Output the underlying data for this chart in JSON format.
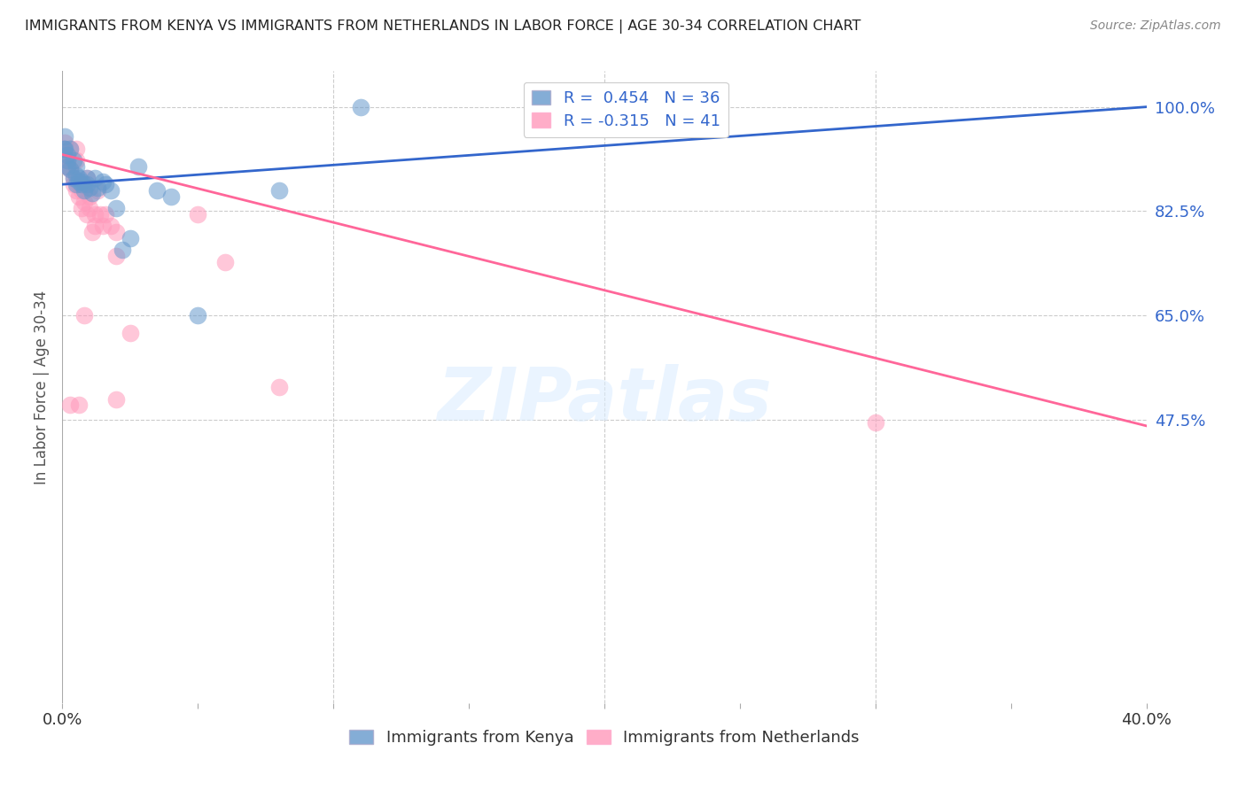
{
  "title": "IMMIGRANTS FROM KENYA VS IMMIGRANTS FROM NETHERLANDS IN LABOR FORCE | AGE 30-34 CORRELATION CHART",
  "source": "Source: ZipAtlas.com",
  "ylabel": "In Labor Force | Age 30-34",
  "ytick_labels": [
    "100.0%",
    "82.5%",
    "65.0%",
    "47.5%"
  ],
  "ytick_values": [
    1.0,
    0.825,
    0.65,
    0.475
  ],
  "xlim": [
    0.0,
    0.4
  ],
  "ylim": [
    0.0,
    1.06
  ],
  "kenya_color": "#6699CC",
  "netherlands_color": "#FF99BB",
  "kenya_line_color": "#3366CC",
  "netherlands_line_color": "#FF6699",
  "legend_line1": "R =  0.454   N = 36",
  "legend_line2": "R = -0.315   N = 41",
  "kenya_label": "Immigrants from Kenya",
  "netherlands_label": "Immigrants from Netherlands",
  "kenya_x": [
    0.0005,
    0.001,
    0.001,
    0.002,
    0.002,
    0.002,
    0.003,
    0.003,
    0.004,
    0.004,
    0.005,
    0.005,
    0.005,
    0.006,
    0.006,
    0.007,
    0.007,
    0.008,
    0.009,
    0.009,
    0.01,
    0.011,
    0.012,
    0.013,
    0.015,
    0.016,
    0.018,
    0.02,
    0.022,
    0.025,
    0.028,
    0.035,
    0.04,
    0.05,
    0.08,
    0.11
  ],
  "kenya_y": [
    0.93,
    0.95,
    0.93,
    0.92,
    0.91,
    0.9,
    0.93,
    0.895,
    0.88,
    0.91,
    0.885,
    0.87,
    0.9,
    0.88,
    0.875,
    0.87,
    0.875,
    0.86,
    0.87,
    0.88,
    0.865,
    0.855,
    0.88,
    0.865,
    0.875,
    0.87,
    0.86,
    0.83,
    0.76,
    0.78,
    0.9,
    0.86,
    0.85,
    0.65,
    0.86,
    1.0
  ],
  "netherlands_x": [
    0.0005,
    0.001,
    0.001,
    0.002,
    0.002,
    0.003,
    0.003,
    0.004,
    0.004,
    0.005,
    0.005,
    0.005,
    0.006,
    0.006,
    0.007,
    0.007,
    0.008,
    0.008,
    0.009,
    0.009,
    0.01,
    0.01,
    0.011,
    0.012,
    0.012,
    0.013,
    0.014,
    0.015,
    0.016,
    0.018,
    0.02,
    0.02,
    0.025,
    0.05,
    0.06,
    0.08,
    0.003,
    0.006,
    0.008,
    0.02,
    0.3
  ],
  "netherlands_y": [
    0.93,
    0.92,
    0.94,
    0.91,
    0.9,
    0.895,
    0.93,
    0.88,
    0.87,
    0.93,
    0.86,
    0.91,
    0.87,
    0.85,
    0.83,
    0.86,
    0.84,
    0.87,
    0.88,
    0.82,
    0.85,
    0.83,
    0.79,
    0.82,
    0.8,
    0.86,
    0.82,
    0.8,
    0.82,
    0.8,
    0.79,
    0.75,
    0.62,
    0.82,
    0.74,
    0.53,
    0.5,
    0.5,
    0.65,
    0.51,
    0.47
  ],
  "watermark": "ZIPatlas",
  "background_color": "#FFFFFF",
  "grid_color": "#CCCCCC",
  "kenya_line_x0": 0.0,
  "kenya_line_x1": 0.4,
  "kenya_line_y0": 0.87,
  "kenya_line_y1": 1.0,
  "nl_line_x0": 0.0,
  "nl_line_x1": 0.4,
  "nl_line_y0": 0.92,
  "nl_line_y1": 0.465
}
